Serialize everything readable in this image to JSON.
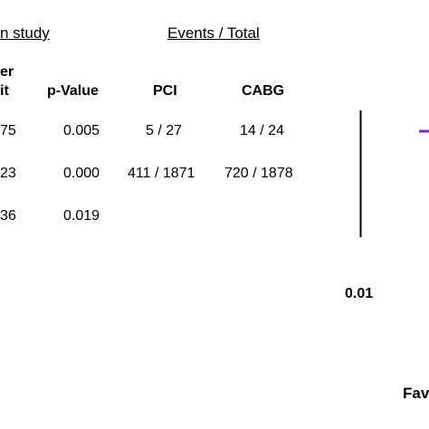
{
  "headers": {
    "study_partial": "n study",
    "events_total": "Events / Total"
  },
  "columns": {
    "limit_top_partial": "er",
    "limit_bottom_partial": "it",
    "pvalue": "p-Value",
    "pci": "PCI",
    "cabg": "CABG"
  },
  "rows": [
    {
      "limit_partial": "75",
      "pvalue": "0.005",
      "pci": "5 / 27",
      "cabg": "14 / 24"
    },
    {
      "limit_partial": "23",
      "pvalue": "0.000",
      "pci": "411 / 1871",
      "cabg": "720 / 1878"
    },
    {
      "limit_partial": "36",
      "pvalue": "0.019",
      "pci": "",
      "cabg": ""
    }
  ],
  "axis": {
    "tick_label": "0.01"
  },
  "footer": {
    "favors_partial": "Fav"
  },
  "colors": {
    "text": "#000000",
    "estimate_mark": "#7b2fbf"
  },
  "chart_data": {
    "type": "table",
    "title": "",
    "xlabel": "",
    "ylabel": "",
    "columns": [
      "p-Value",
      "PCI",
      "CABG"
    ],
    "rows": [
      [
        "0.005",
        "5 / 27",
        "14 / 24"
      ],
      [
        "0.000",
        "411 / 1871",
        "720 / 1878"
      ],
      [
        "0.019",
        "",
        ""
      ]
    ],
    "x_scale": "log",
    "x_tick_labels": [
      "0.01"
    ]
  }
}
